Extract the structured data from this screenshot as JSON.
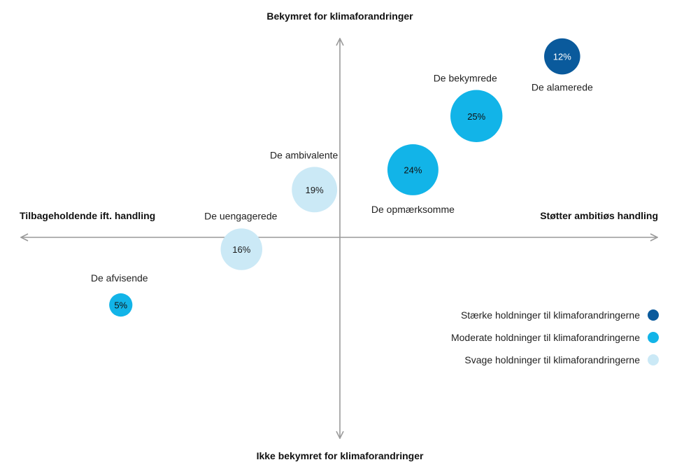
{
  "chart_data": {
    "type": "scatter",
    "axes": {
      "y_top": "Bekymret for klimaforandringer",
      "y_bottom": "Ikke bekymret for klimaforandringer",
      "x_left": "Tilbageholdende ift. handling",
      "x_right": "Støtter ambitiøs handling"
    },
    "xlim": [
      -10,
      10
    ],
    "ylim": [
      -10,
      10
    ],
    "grid": false,
    "legend_position": "bottom-right",
    "colors": {
      "strong": "#0a5a9c",
      "moderate": "#12b4e8",
      "weak": "#cbe9f6",
      "axis": "#9a9a9a"
    },
    "segments": [
      {
        "name": "De alamerede",
        "share": 12,
        "value_label": "12%",
        "x": 7.0,
        "y": 9.1,
        "strength": "strong"
      },
      {
        "name": "De bekymrede",
        "share": 25,
        "value_label": "25%",
        "x": 4.3,
        "y": 6.1,
        "strength": "moderate"
      },
      {
        "name": "De opmærksomme",
        "share": 24,
        "value_label": "24%",
        "x": 2.3,
        "y": 3.4,
        "strength": "moderate"
      },
      {
        "name": "De ambivalente",
        "share": 19,
        "value_label": "19%",
        "x": -0.8,
        "y": 2.4,
        "strength": "weak"
      },
      {
        "name": "De uengagerede",
        "share": 16,
        "value_label": "16%",
        "x": -3.1,
        "y": -0.6,
        "strength": "weak"
      },
      {
        "name": "De afvisende",
        "share": 5,
        "value_label": "5%",
        "x": -6.9,
        "y": -3.4,
        "strength": "moderate"
      }
    ],
    "legend": [
      {
        "label": "Stærke holdninger til klimaforandringerne",
        "strength": "strong"
      },
      {
        "label": "Moderate holdninger til klimaforandringerne",
        "strength": "moderate"
      },
      {
        "label": "Svage holdninger til klimaforandringerne",
        "strength": "weak"
      }
    ]
  }
}
